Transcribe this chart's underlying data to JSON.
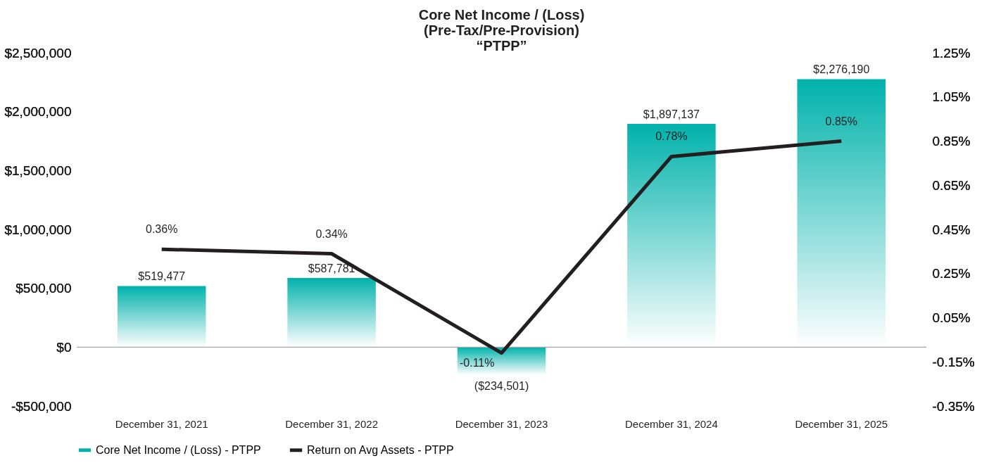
{
  "chart_data": {
    "type": "bar",
    "title": "Core Net Income / (Loss)\n(Pre-Tax/Pre-Provision)\n“PTPP”",
    "categories": [
      "December 31, 2021",
      "December 31, 2022",
      "December 31, 2023",
      "December 31, 2024",
      "December 31, 2025"
    ],
    "series": [
      {
        "name": "Core Net Income / (Loss) - PTPP",
        "color": "#00b2ab",
        "values": [
          519477,
          587781,
          -234501,
          1897137,
          2276190
        ],
        "value_labels": [
          "$519,477",
          "$587,781",
          "($234,501)",
          "$1,897,137",
          "$2,276,190"
        ]
      },
      {
        "name": "Return on Avg Assets - PTPP",
        "type": "line",
        "axis": "y2",
        "color": "#231f20",
        "values": [
          0.36,
          0.34,
          -0.11,
          0.78,
          0.85
        ],
        "value_labels": [
          "0.36%",
          "0.34%",
          "-0.11%",
          "0.78%",
          "0.85%"
        ]
      }
    ],
    "ylim": [
      -500000,
      2500000
    ],
    "yticks": [
      {
        "value": -500000,
        "label": "-$500,000"
      },
      {
        "value": 0,
        "label": "$0"
      },
      {
        "value": 500000,
        "label": "$500,000"
      },
      {
        "value": 1000000,
        "label": "$1,000,000"
      },
      {
        "value": 1500000,
        "label": "$1,500,000"
      },
      {
        "value": 2000000,
        "label": "$2,000,000"
      },
      {
        "value": 2500000,
        "label": "$2,500,000"
      }
    ],
    "y2lim": [
      -0.35,
      1.25
    ],
    "y2ticks": [
      {
        "value": -0.35,
        "label": "-0.35%"
      },
      {
        "value": -0.15,
        "label": "-0.15%"
      },
      {
        "value": 0.05,
        "label": "0.05%"
      },
      {
        "value": 0.25,
        "label": "0.25%"
      },
      {
        "value": 0.45,
        "label": "0.45%"
      },
      {
        "value": 0.65,
        "label": "0.65%"
      },
      {
        "value": 0.85,
        "label": "0.85%"
      },
      {
        "value": 1.05,
        "label": "1.05%"
      },
      {
        "value": 1.25,
        "label": "1.25%"
      }
    ],
    "ref_lines": [
      {
        "axis": "y",
        "value": 0,
        "color": "#a6a6a6"
      }
    ],
    "grid": false,
    "legend": "bottom",
    "marker": "none",
    "line_style": "solid"
  }
}
